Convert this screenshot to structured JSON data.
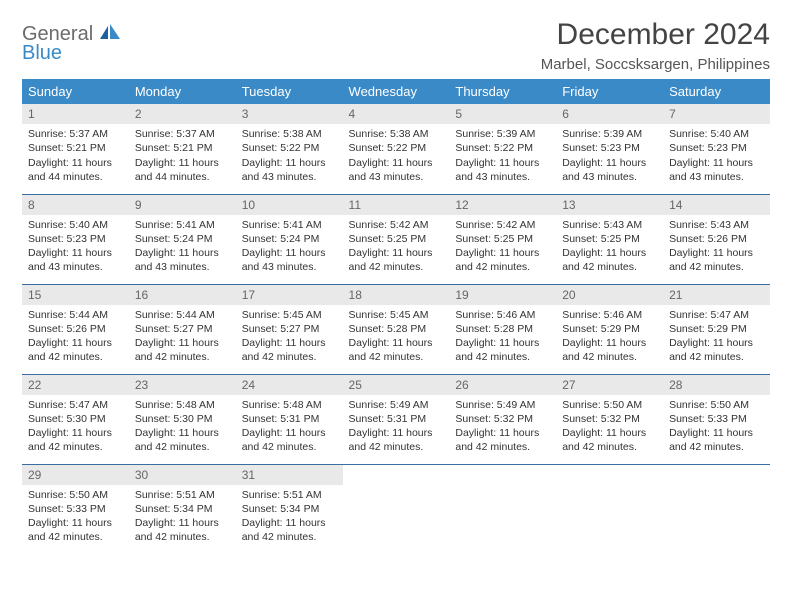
{
  "logo": {
    "general": "General",
    "blue": "Blue"
  },
  "title": "December 2024",
  "subtitle": "Marbel, Soccsksargen, Philippines",
  "colors": {
    "header_bg": "#3a8ac8",
    "header_text": "#ffffff",
    "row_divider": "#3a6e9e",
    "daynum_bg": "#e9e9e9",
    "logo_gray": "#6b6b6b",
    "logo_blue": "#3a8ac8"
  },
  "weekdays": [
    "Sunday",
    "Monday",
    "Tuesday",
    "Wednesday",
    "Thursday",
    "Friday",
    "Saturday"
  ],
  "days": [
    {
      "n": 1,
      "sr": "5:37 AM",
      "ss": "5:21 PM",
      "dl": "11 hours and 44 minutes."
    },
    {
      "n": 2,
      "sr": "5:37 AM",
      "ss": "5:21 PM",
      "dl": "11 hours and 44 minutes."
    },
    {
      "n": 3,
      "sr": "5:38 AM",
      "ss": "5:22 PM",
      "dl": "11 hours and 43 minutes."
    },
    {
      "n": 4,
      "sr": "5:38 AM",
      "ss": "5:22 PM",
      "dl": "11 hours and 43 minutes."
    },
    {
      "n": 5,
      "sr": "5:39 AM",
      "ss": "5:22 PM",
      "dl": "11 hours and 43 minutes."
    },
    {
      "n": 6,
      "sr": "5:39 AM",
      "ss": "5:23 PM",
      "dl": "11 hours and 43 minutes."
    },
    {
      "n": 7,
      "sr": "5:40 AM",
      "ss": "5:23 PM",
      "dl": "11 hours and 43 minutes."
    },
    {
      "n": 8,
      "sr": "5:40 AM",
      "ss": "5:23 PM",
      "dl": "11 hours and 43 minutes."
    },
    {
      "n": 9,
      "sr": "5:41 AM",
      "ss": "5:24 PM",
      "dl": "11 hours and 43 minutes."
    },
    {
      "n": 10,
      "sr": "5:41 AM",
      "ss": "5:24 PM",
      "dl": "11 hours and 43 minutes."
    },
    {
      "n": 11,
      "sr": "5:42 AM",
      "ss": "5:25 PM",
      "dl": "11 hours and 42 minutes."
    },
    {
      "n": 12,
      "sr": "5:42 AM",
      "ss": "5:25 PM",
      "dl": "11 hours and 42 minutes."
    },
    {
      "n": 13,
      "sr": "5:43 AM",
      "ss": "5:25 PM",
      "dl": "11 hours and 42 minutes."
    },
    {
      "n": 14,
      "sr": "5:43 AM",
      "ss": "5:26 PM",
      "dl": "11 hours and 42 minutes."
    },
    {
      "n": 15,
      "sr": "5:44 AM",
      "ss": "5:26 PM",
      "dl": "11 hours and 42 minutes."
    },
    {
      "n": 16,
      "sr": "5:44 AM",
      "ss": "5:27 PM",
      "dl": "11 hours and 42 minutes."
    },
    {
      "n": 17,
      "sr": "5:45 AM",
      "ss": "5:27 PM",
      "dl": "11 hours and 42 minutes."
    },
    {
      "n": 18,
      "sr": "5:45 AM",
      "ss": "5:28 PM",
      "dl": "11 hours and 42 minutes."
    },
    {
      "n": 19,
      "sr": "5:46 AM",
      "ss": "5:28 PM",
      "dl": "11 hours and 42 minutes."
    },
    {
      "n": 20,
      "sr": "5:46 AM",
      "ss": "5:29 PM",
      "dl": "11 hours and 42 minutes."
    },
    {
      "n": 21,
      "sr": "5:47 AM",
      "ss": "5:29 PM",
      "dl": "11 hours and 42 minutes."
    },
    {
      "n": 22,
      "sr": "5:47 AM",
      "ss": "5:30 PM",
      "dl": "11 hours and 42 minutes."
    },
    {
      "n": 23,
      "sr": "5:48 AM",
      "ss": "5:30 PM",
      "dl": "11 hours and 42 minutes."
    },
    {
      "n": 24,
      "sr": "5:48 AM",
      "ss": "5:31 PM",
      "dl": "11 hours and 42 minutes."
    },
    {
      "n": 25,
      "sr": "5:49 AM",
      "ss": "5:31 PM",
      "dl": "11 hours and 42 minutes."
    },
    {
      "n": 26,
      "sr": "5:49 AM",
      "ss": "5:32 PM",
      "dl": "11 hours and 42 minutes."
    },
    {
      "n": 27,
      "sr": "5:50 AM",
      "ss": "5:32 PM",
      "dl": "11 hours and 42 minutes."
    },
    {
      "n": 28,
      "sr": "5:50 AM",
      "ss": "5:33 PM",
      "dl": "11 hours and 42 minutes."
    },
    {
      "n": 29,
      "sr": "5:50 AM",
      "ss": "5:33 PM",
      "dl": "11 hours and 42 minutes."
    },
    {
      "n": 30,
      "sr": "5:51 AM",
      "ss": "5:34 PM",
      "dl": "11 hours and 42 minutes."
    },
    {
      "n": 31,
      "sr": "5:51 AM",
      "ss": "5:34 PM",
      "dl": "11 hours and 42 minutes."
    }
  ],
  "labels": {
    "sunrise": "Sunrise:",
    "sunset": "Sunset:",
    "daylight": "Daylight:"
  }
}
